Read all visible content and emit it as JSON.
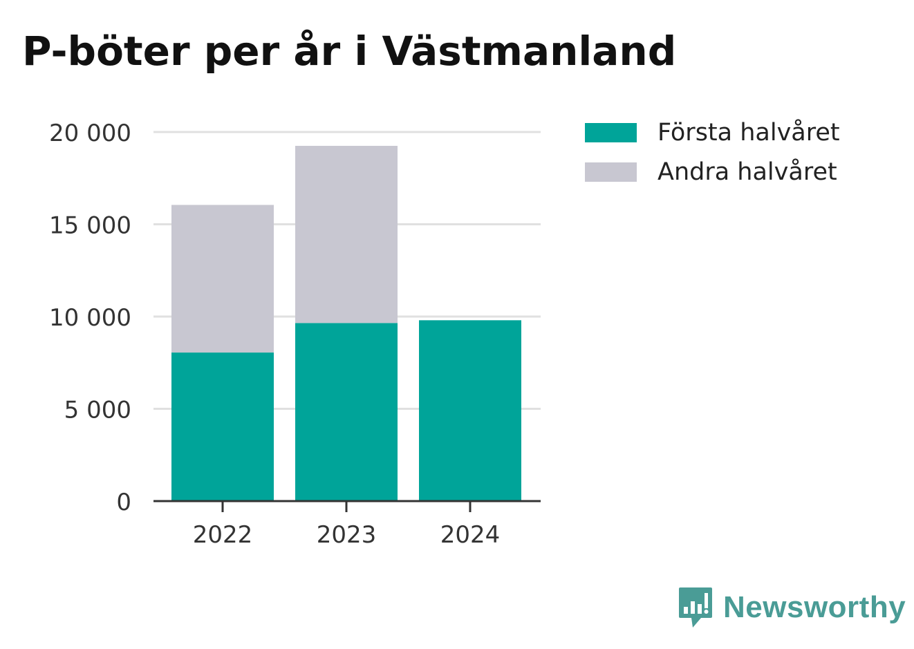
{
  "colors": {
    "series_first": "#00a499",
    "series_second": "#c8c7d1",
    "grid": "#e0e0e0",
    "axis": "#333333",
    "brand": "#4a9c96"
  },
  "chart_data": {
    "type": "bar",
    "stacked": true,
    "title": "P-böter per år i Västmanland",
    "categories": [
      "2022",
      "2023",
      "2024"
    ],
    "series": [
      {
        "name": "Första halvåret",
        "values": [
          8050,
          9650,
          9800
        ]
      },
      {
        "name": "Andra halvåret",
        "values": [
          8000,
          9600,
          null
        ]
      }
    ],
    "ylim": [
      0,
      20000
    ],
    "yticks": [
      0,
      5000,
      10000,
      15000,
      20000
    ],
    "ytick_labels": [
      "0",
      "5 000",
      "10 000",
      "15 000",
      "20 000"
    ],
    "grid": true,
    "legend_position": "right"
  },
  "legend": {
    "items": [
      {
        "label": "Första halvåret",
        "icon": "legend-swatch-teal"
      },
      {
        "label": "Andra halvåret",
        "icon": "legend-swatch-gray"
      }
    ]
  },
  "brand": {
    "name": "Newsworthy",
    "icon": "newsworthy-logo-icon"
  }
}
